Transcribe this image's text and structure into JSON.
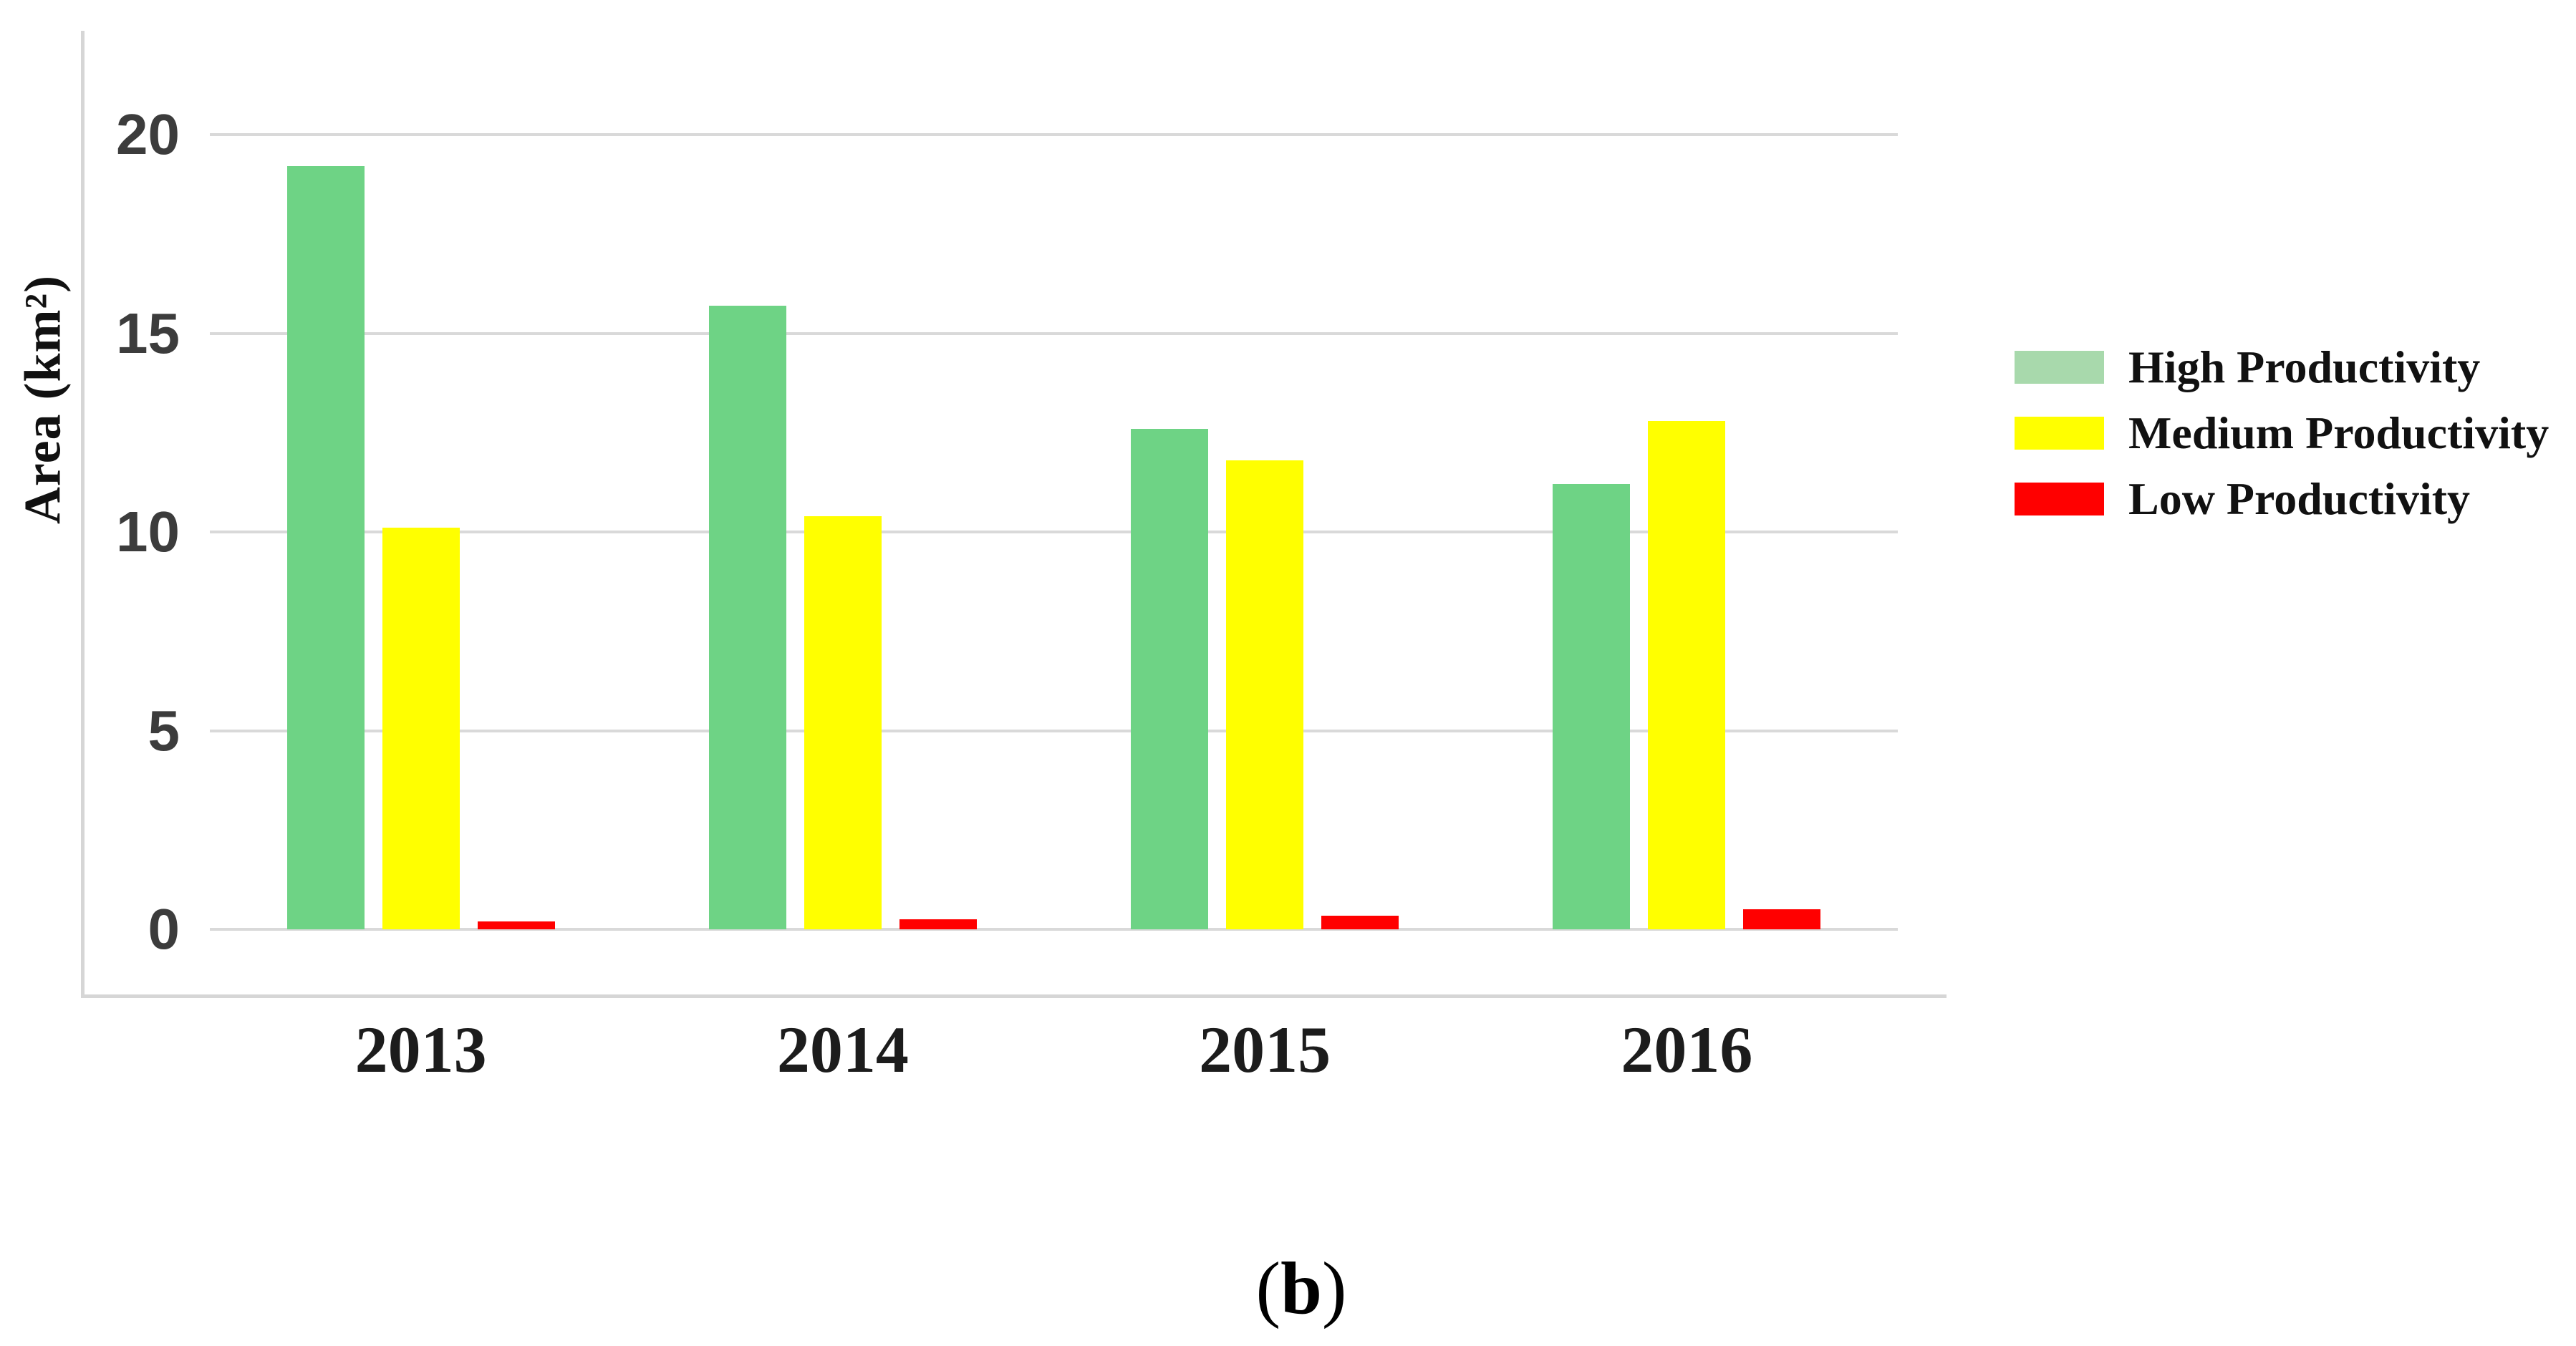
{
  "figure": {
    "caption_prefix": "(",
    "caption_letter": "b",
    "caption_suffix": ")"
  },
  "chart_data": {
    "type": "bar",
    "title": "",
    "xlabel": "",
    "ylabel": "Area (km²)",
    "categories": [
      "2013",
      "2014",
      "2015",
      "2016"
    ],
    "series": [
      {
        "name": "High Productivity",
        "bar_color": "#6ed385",
        "legend_color": "#a8d9ac",
        "values": [
          19.2,
          15.7,
          12.6,
          11.2
        ]
      },
      {
        "name": "Medium Productivity",
        "bar_color": "#ffff00",
        "legend_color": "#ffff00",
        "values": [
          10.1,
          10.4,
          11.8,
          12.8
        ]
      },
      {
        "name": "Low Productivity",
        "bar_color": "#ff0000",
        "legend_color": "#ff0000",
        "values": [
          0.2,
          0.25,
          0.35,
          0.5
        ]
      }
    ],
    "ylim": [
      0,
      20
    ],
    "yticks": [
      0,
      5,
      10,
      15,
      20
    ],
    "grid": true,
    "legend_position": "right"
  },
  "colors": {
    "gridline": "#d9d9d9",
    "frame": "#d6d6d6",
    "tick_text": "#3c3c3c",
    "text": "#111111",
    "background": "#ffffff"
  }
}
